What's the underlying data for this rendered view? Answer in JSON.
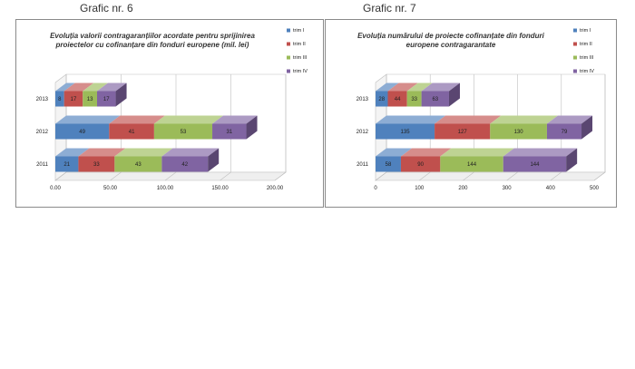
{
  "captions": [
    "Grafic nr. 6",
    "Grafic nr. 7"
  ],
  "colors": {
    "trim_I": "#4f81bd",
    "trim_II": "#c0504d",
    "trim_III": "#9bbb59",
    "trim_IV": "#8064a2"
  },
  "chart_data": [
    {
      "type": "bar",
      "orientation": "horizontal",
      "stacked": true,
      "title": "Evoluția valorii contragaranțiilor acordate pentru sprijinirea proiectelor cu cofinanțare din fonduri europene  (mil. lei)",
      "title_lines": [
        "Evoluția valorii contragaranțiilor acordate pentru sprijinirea",
        "proiectelor cu cofinanțare din fonduri europene  (mil. lei)"
      ],
      "categories": [
        "2013",
        "2012",
        "2011"
      ],
      "series": [
        {
          "name": "trim I",
          "values": [
            8,
            49,
            21
          ]
        },
        {
          "name": "trim II",
          "values": [
            17,
            41,
            33
          ]
        },
        {
          "name": "trim III",
          "values": [
            13,
            53,
            43
          ]
        },
        {
          "name": "trim IV",
          "values": [
            17,
            31,
            42
          ]
        }
      ],
      "xlim": [
        0,
        200
      ],
      "xticks": [
        "0.00",
        "50.00",
        "100.00",
        "150.00",
        "200.00"
      ],
      "legend": "right"
    },
    {
      "type": "bar",
      "orientation": "horizontal",
      "stacked": true,
      "title": "Evoluția numărului de proiecte cofinanțate din fonduri europene contragarantate",
      "title_lines": [
        "Evoluția numărului de proiecte cofinanțate din fonduri",
        "europene contragarantate"
      ],
      "categories": [
        "2013",
        "2012",
        "2011"
      ],
      "series": [
        {
          "name": "trim I",
          "values": [
            28,
            135,
            58
          ]
        },
        {
          "name": "trim II",
          "values": [
            44,
            127,
            90
          ]
        },
        {
          "name": "trim III",
          "values": [
            33,
            130,
            144
          ]
        },
        {
          "name": "trim IV",
          "values": [
            63,
            79,
            144
          ]
        }
      ],
      "xlim": [
        0,
        500
      ],
      "xticks": [
        "0",
        "100",
        "200",
        "300",
        "400",
        "500"
      ],
      "legend": "right"
    }
  ]
}
